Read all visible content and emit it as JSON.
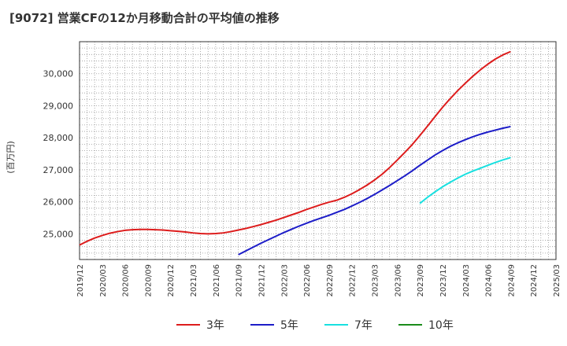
{
  "chart_data": {
    "type": "line",
    "title": "[9072]  営業CFの12か月移動合計の平均値の推移",
    "ylabel": "(百万円)",
    "xlabel": "",
    "x_ticks": [
      "2019/12",
      "2020/03",
      "2020/06",
      "2020/09",
      "2020/12",
      "2021/03",
      "2021/06",
      "2021/09",
      "2021/12",
      "2022/03",
      "2022/06",
      "2022/09",
      "2022/12",
      "2023/03",
      "2023/06",
      "2023/09",
      "2023/12",
      "2024/03",
      "2024/06",
      "2024/09",
      "2024/12",
      "2025/03"
    ],
    "y_ticks": [
      25000,
      26000,
      27000,
      28000,
      29000,
      30000
    ],
    "y_tick_labels": [
      "25,000",
      "26,000",
      "27,000",
      "28,000",
      "29,000",
      "30,000"
    ],
    "ylim": [
      24200,
      31000
    ],
    "grid": true,
    "legend_position": "bottom",
    "series": [
      {
        "name": "3年",
        "color": "#dd1c1c",
        "x": [
          "2019/12",
          "2020/01",
          "2020/02",
          "2020/03",
          "2020/04",
          "2020/05",
          "2020/06",
          "2020/07",
          "2020/08",
          "2020/09",
          "2020/10",
          "2020/11",
          "2020/12",
          "2021/01",
          "2021/02",
          "2021/03",
          "2021/04",
          "2021/05",
          "2021/06",
          "2021/07",
          "2021/08",
          "2021/09",
          "2021/10",
          "2021/11",
          "2021/12",
          "2022/01",
          "2022/02",
          "2022/03",
          "2022/04",
          "2022/05",
          "2022/06",
          "2022/07",
          "2022/08",
          "2022/09",
          "2022/10",
          "2022/11",
          "2022/12",
          "2023/01",
          "2023/02",
          "2023/03",
          "2023/04",
          "2023/05",
          "2023/06",
          "2023/07",
          "2023/08",
          "2023/09",
          "2023/10",
          "2023/11",
          "2023/12",
          "2024/01",
          "2024/02",
          "2024/03",
          "2024/04",
          "2024/05",
          "2024/06",
          "2024/07",
          "2024/08",
          "2024/09"
        ],
        "values": [
          24650,
          24770,
          24870,
          24950,
          25020,
          25070,
          25110,
          25130,
          25140,
          25140,
          25130,
          25120,
          25100,
          25080,
          25060,
          25030,
          25010,
          25000,
          25010,
          25030,
          25070,
          25120,
          25170,
          25230,
          25290,
          25360,
          25430,
          25510,
          25590,
          25670,
          25760,
          25840,
          25920,
          25990,
          26050,
          26140,
          26250,
          26380,
          26520,
          26680,
          26860,
          27070,
          27300,
          27540,
          27790,
          28070,
          28360,
          28660,
          28950,
          29220,
          29470,
          29700,
          29920,
          30120,
          30300,
          30460,
          30590,
          30690
        ]
      },
      {
        "name": "5年",
        "color": "#1c1cc8",
        "x": [
          "2021/09",
          "2021/10",
          "2021/11",
          "2021/12",
          "2022/01",
          "2022/02",
          "2022/03",
          "2022/04",
          "2022/05",
          "2022/06",
          "2022/07",
          "2022/08",
          "2022/09",
          "2022/10",
          "2022/11",
          "2022/12",
          "2023/01",
          "2023/02",
          "2023/03",
          "2023/04",
          "2023/05",
          "2023/06",
          "2023/07",
          "2023/08",
          "2023/09",
          "2023/10",
          "2023/11",
          "2023/12",
          "2024/01",
          "2024/02",
          "2024/03",
          "2024/04",
          "2024/05",
          "2024/06",
          "2024/07",
          "2024/08",
          "2024/09"
        ],
        "values": [
          24350,
          24470,
          24590,
          24710,
          24820,
          24930,
          25040,
          25140,
          25240,
          25330,
          25420,
          25500,
          25580,
          25670,
          25760,
          25870,
          25980,
          26100,
          26230,
          26370,
          26510,
          26660,
          26810,
          26970,
          27140,
          27300,
          27460,
          27600,
          27730,
          27840,
          27940,
          28030,
          28110,
          28180,
          28240,
          28300,
          28350
        ]
      },
      {
        "name": "7年",
        "color": "#18e0e0",
        "x": [
          "2023/09",
          "2023/10",
          "2023/11",
          "2023/12",
          "2024/01",
          "2024/02",
          "2024/03",
          "2024/04",
          "2024/05",
          "2024/06",
          "2024/07",
          "2024/08",
          "2024/09"
        ],
        "values": [
          25950,
          26140,
          26310,
          26470,
          26610,
          26740,
          26860,
          26960,
          27050,
          27140,
          27230,
          27310,
          27380
        ]
      },
      {
        "name": "10年",
        "color": "#1a8c1a",
        "x": [],
        "values": []
      }
    ]
  }
}
